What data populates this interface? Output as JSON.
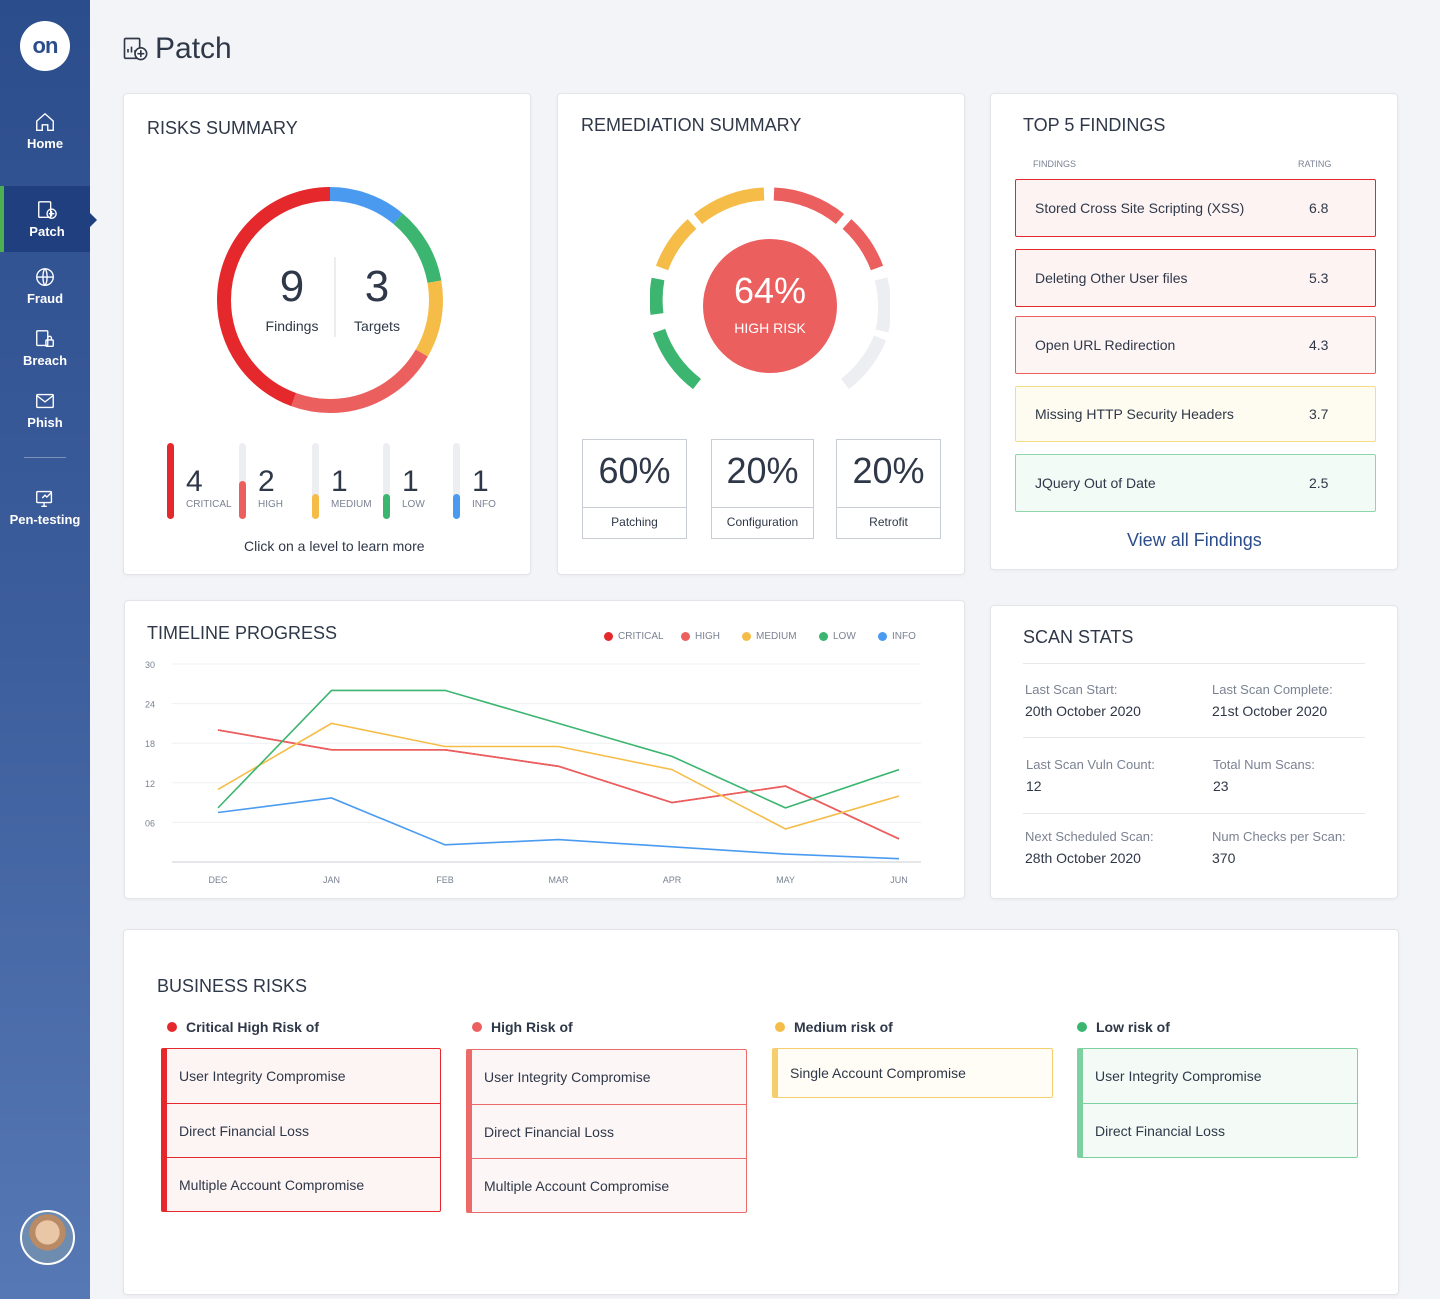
{
  "app": {
    "logo_text": "on",
    "page_title": "Patch"
  },
  "sidebar": {
    "items": [
      {
        "label": "Home"
      },
      {
        "label": "Patch"
      },
      {
        "label": "Fraud"
      },
      {
        "label": "Breach"
      },
      {
        "label": "Phish"
      },
      {
        "label": "Pen-testing"
      }
    ]
  },
  "risks_summary": {
    "title": "RISKS SUMMARY",
    "findings_count": "9",
    "findings_label": "Findings",
    "targets_count": "3",
    "targets_label": "Targets",
    "levels": [
      {
        "count": "4",
        "label": "CRITICAL",
        "color": "#e5282b",
        "fill_fraction": 1.0
      },
      {
        "count": "2",
        "label": "HIGH",
        "color": "#ec5f5f",
        "fill_fraction": 0.5
      },
      {
        "count": "1",
        "label": "MEDIUM",
        "color": "#f5bd48",
        "fill_fraction": 0.33
      },
      {
        "count": "1",
        "label": "LOW",
        "color": "#3bb56f",
        "fill_fraction": 0.33
      },
      {
        "count": "1",
        "label": "INFO",
        "color": "#4a9bf0",
        "fill_fraction": 0.33
      }
    ],
    "hint": "Click on a level to learn more"
  },
  "remediation_summary": {
    "title": "REMEDIATION SUMMARY",
    "gauge_value": "64%",
    "gauge_label": "HIGH RISK",
    "boxes": [
      {
        "pct": "60%",
        "label": "Patching"
      },
      {
        "pct": "20%",
        "label": "Configuration"
      },
      {
        "pct": "20%",
        "label": "Retrofit"
      }
    ]
  },
  "top_findings": {
    "title": "TOP 5 FINDINGS",
    "col_findings": "FINDINGS",
    "col_rating": "RATING",
    "items": [
      {
        "name": "Stored Cross Site Scripting (XSS)",
        "rating": "6.8",
        "border": "#e5282b",
        "bg": "#fdf3f3"
      },
      {
        "name": "Deleting Other User files",
        "rating": "5.3",
        "border": "#e5282b",
        "bg": "#fdf3f3"
      },
      {
        "name": "Open URL Redirection",
        "rating": "4.3",
        "border": "#ec5f5f",
        "bg": "#fdf4f4"
      },
      {
        "name": "Missing HTTP Security Headers",
        "rating": "3.7",
        "border": "#f5dc8a",
        "bg": "#fefcf1"
      },
      {
        "name": "JQuery Out of Date",
        "rating": "2.5",
        "border": "#8fd6ad",
        "bg": "#f3fbf6"
      }
    ],
    "view_all": "View all Findings"
  },
  "timeline": {
    "title": "TIMELINE PROGRESS"
  },
  "chart_data": {
    "type": "line",
    "title": "TIMELINE PROGRESS",
    "categories": [
      "DEC",
      "JAN",
      "FEB",
      "MAR",
      "APR",
      "MAY",
      "JUN"
    ],
    "yticks": [
      "30",
      "24",
      "18",
      "12",
      "06"
    ],
    "ylim": [
      0,
      30
    ],
    "series": [
      {
        "name": "CRITICAL",
        "color": "#e5282b",
        "x": [
          0,
          1,
          2,
          3,
          4,
          5,
          6
        ],
        "values": [
          20,
          17,
          17,
          14.5,
          9,
          11.5,
          3.5
        ]
      },
      {
        "name": "HIGH",
        "color": "#ec5f5f",
        "x": [
          0,
          1,
          2,
          3,
          4,
          5,
          6
        ],
        "values": [
          20,
          17,
          17,
          14.5,
          9,
          11.5,
          3.5
        ]
      },
      {
        "name": "MEDIUM",
        "color": "#f5bd48",
        "x": [
          0,
          1,
          2,
          3,
          4,
          5,
          6
        ],
        "values": [
          11,
          21,
          17.5,
          17.5,
          14,
          5,
          10
        ]
      },
      {
        "name": "LOW",
        "color": "#3bb56f",
        "x": [
          0,
          1,
          1.5,
          2,
          4,
          5,
          6
        ],
        "values": [
          8.2,
          26,
          26,
          26,
          16,
          8.2,
          14
        ]
      },
      {
        "name": "INFO",
        "color": "#4a9bf0",
        "x": [
          0,
          1,
          2,
          3,
          4,
          5,
          6
        ],
        "values": [
          7.5,
          9.7,
          2.6,
          3.4,
          2.3,
          1.2,
          0.5
        ]
      }
    ]
  },
  "scan_stats": {
    "title": "SCAN STATS",
    "rows": [
      [
        {
          "label": "Last Scan Start:",
          "value": "20th October 2020"
        },
        {
          "label": "Last Scan Complete:",
          "value": "21st October 2020"
        }
      ],
      [
        {
          "label": "Last Scan Vuln Count:",
          "value": "12"
        },
        {
          "label": "Total Num Scans:",
          "value": "23"
        }
      ],
      [
        {
          "label": "Next Scheduled Scan:",
          "value": "28th October 2020"
        },
        {
          "label": "Num Checks per Scan:",
          "value": "370"
        }
      ]
    ]
  },
  "business_risks": {
    "title": "BUSINESS RISKS",
    "groups": [
      {
        "heading": "Critical High Risk of",
        "color": "#e5282b",
        "border": "#e5282b",
        "bg": "#fdf4f4",
        "items": [
          "User Integrity Compromise",
          "Direct Financial Loss",
          "Multiple Account Compromise"
        ]
      },
      {
        "heading": "High Risk of",
        "color": "#ec5f5f",
        "border": "#ec6a6a",
        "bg": "#fdf6f6",
        "items": [
          "User Integrity Compromise",
          "Direct Financial Loss",
          "Multiple Account Compromise"
        ]
      },
      {
        "heading": "Medium risk of",
        "color": "#f5bd48",
        "border": "#f5cf6e",
        "bg": "#fffdf5",
        "items": [
          "Single Account Compromise"
        ]
      },
      {
        "heading": "Low risk of",
        "color": "#3bb56f",
        "border": "#7dd0a0",
        "bg": "#f4fbf7",
        "items": [
          "User Integrity Compromise",
          "Direct Financial Loss"
        ]
      }
    ]
  }
}
